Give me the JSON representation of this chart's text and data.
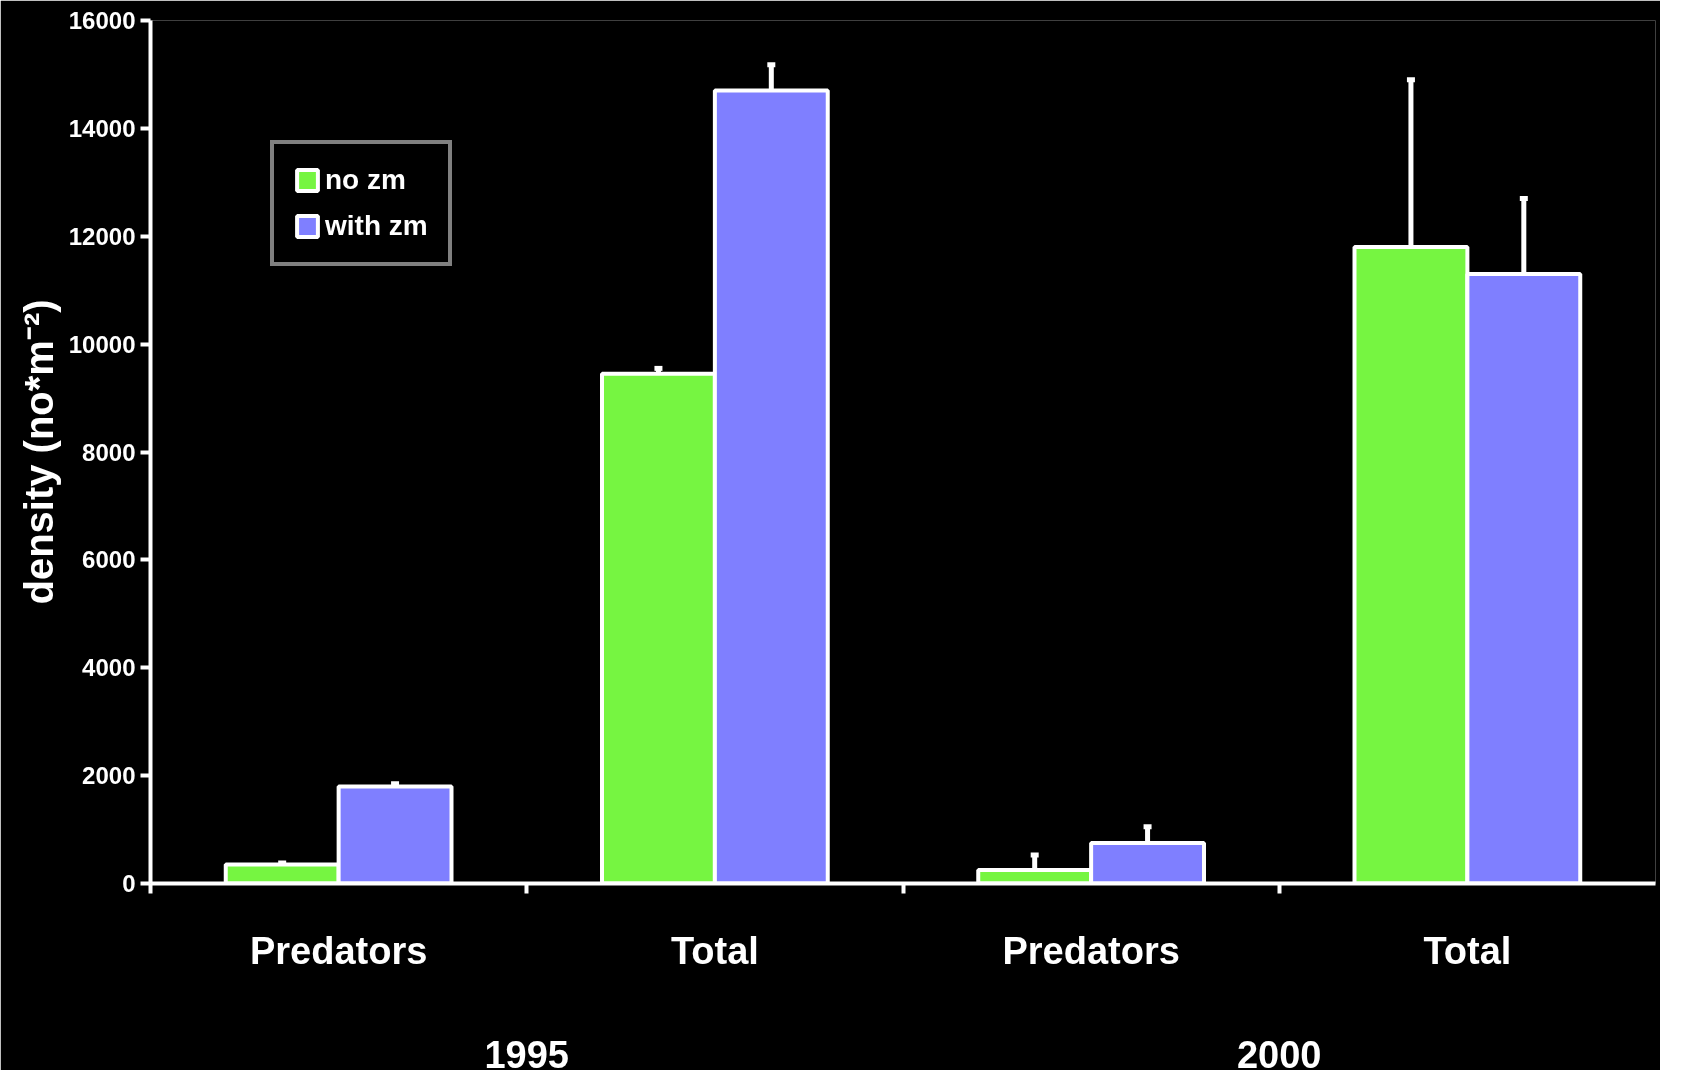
{
  "chart_data": {
    "type": "bar",
    "categories": [
      "Predators",
      "Total",
      "Predators",
      "Total"
    ],
    "series": [
      {
        "name": "no zm",
        "color": "#76f541",
        "values": [
          350,
          9450,
          250,
          11800
        ],
        "errors": [
          30,
          100,
          280,
          3100
        ]
      },
      {
        "name": "with zm",
        "color": "#7f7fff",
        "values": [
          1800,
          14700,
          750,
          11300
        ],
        "errors": [
          50,
          480,
          300,
          1400
        ]
      }
    ],
    "ylabel": "density (no*m⁻²)",
    "ylim": [
      0,
      16000
    ],
    "yticks": [
      0,
      2000,
      4000,
      6000,
      8000,
      10000,
      12000,
      14000,
      16000
    ],
    "annotations": [
      "1995",
      "2000"
    ],
    "grid": false,
    "legend": "top left"
  }
}
